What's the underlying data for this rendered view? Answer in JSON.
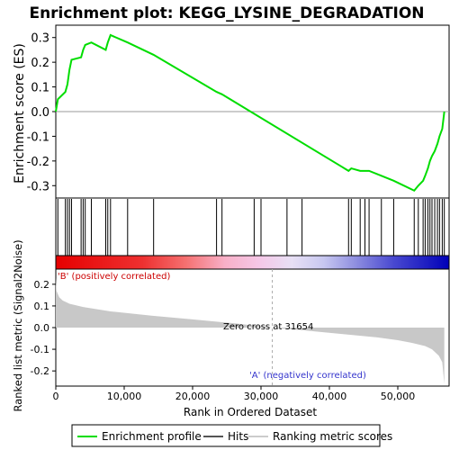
{
  "chart_data": {
    "type": "line",
    "title": "Enrichment plot: KEGG_LYSINE_DEGRADATION",
    "es_panel": {
      "ylabel": "Enrichment score (ES)",
      "ylim": [
        -0.35,
        0.35
      ],
      "yticks": [
        "-0.3",
        "-0.2",
        "-0.1",
        "0.0",
        "0.1",
        "0.2",
        "0.3"
      ],
      "ytick_values": [
        -0.3,
        -0.2,
        -0.1,
        0.0,
        0.1,
        0.2,
        0.3
      ],
      "line_color": "#00dd00",
      "series": [
        {
          "x": [
            0,
            300,
            1400,
            1700,
            2000,
            2300,
            3700,
            4000,
            4300,
            5200,
            7300,
            7600,
            8000,
            10500,
            14300,
            23500,
            24300,
            42800,
            43200,
            44500,
            45200,
            45800,
            47600,
            49400,
            52400,
            53000,
            53700,
            54000,
            54400,
            54700,
            55000,
            55400,
            55800,
            56100,
            56500,
            56800
          ],
          "y": [
            0.0,
            0.05,
            0.08,
            0.11,
            0.17,
            0.21,
            0.22,
            0.25,
            0.27,
            0.28,
            0.25,
            0.28,
            0.31,
            0.28,
            0.23,
            0.08,
            0.07,
            -0.24,
            -0.23,
            -0.24,
            -0.24,
            -0.24,
            -0.26,
            -0.28,
            -0.32,
            -0.3,
            -0.28,
            -0.26,
            -0.23,
            -0.2,
            -0.18,
            -0.16,
            -0.13,
            -0.1,
            -0.07,
            0.0
          ]
        }
      ]
    },
    "hits": [
      300,
      1400,
      1700,
      2000,
      2300,
      3700,
      4000,
      4300,
      5200,
      7300,
      7600,
      8000,
      10500,
      14300,
      23500,
      24300,
      29000,
      30000,
      33800,
      36000,
      42800,
      43200,
      44500,
      45200,
      45800,
      47600,
      49400,
      52400,
      53000,
      53700,
      54000,
      54400,
      54700,
      55000,
      55400,
      55800,
      56100,
      56500,
      56800
    ],
    "metric_panel": {
      "ylabel": "Ranked list metric (Signal2Noise)",
      "xlabel": "Rank in Ordered Dataset",
      "ylim": [
        -0.27,
        0.27
      ],
      "yticks": [
        "-0.2",
        "-0.1",
        "0.0",
        "0.1",
        "0.2"
      ],
      "ytick_values": [
        -0.2,
        -0.1,
        0.0,
        0.1,
        0.2
      ],
      "fill_color": "#c8c8c8",
      "curve": {
        "x": [
          0,
          100,
          500,
          1000,
          2000,
          4000,
          8000,
          14000,
          20000,
          26000,
          31654,
          36000,
          42000,
          47000,
          50000,
          52000,
          54000,
          55000,
          56000,
          56500,
          56800
        ],
        "y": [
          0.23,
          0.17,
          0.14,
          0.125,
          0.11,
          0.095,
          0.075,
          0.055,
          0.038,
          0.02,
          0.0,
          -0.012,
          -0.03,
          -0.045,
          -0.058,
          -0.07,
          -0.085,
          -0.1,
          -0.13,
          -0.16,
          -0.26
        ]
      },
      "positive_label": "'B' (positively correlated)",
      "negative_label": "'A' (negatively correlated)",
      "zero_cross_label": "Zero cross at 31654",
      "zero_cross": 31654
    },
    "xlim": [
      0,
      57500
    ],
    "xticks": [
      "0",
      "10,000",
      "20,000",
      "30,000",
      "40,000",
      "50,000"
    ],
    "xtick_values": [
      0,
      10000,
      20000,
      30000,
      40000,
      50000
    ],
    "legend": {
      "placement": "bottom",
      "items": [
        {
          "label": "Enrichment profile",
          "color": "#00dd00"
        },
        {
          "label": "Hits",
          "color": "#555555"
        },
        {
          "label": "Ranking metric scores",
          "color": "#cccccc"
        }
      ]
    },
    "colors": {
      "frame": "#000000",
      "positive_text": "#cc0000",
      "negative_text": "#3333cc"
    }
  }
}
